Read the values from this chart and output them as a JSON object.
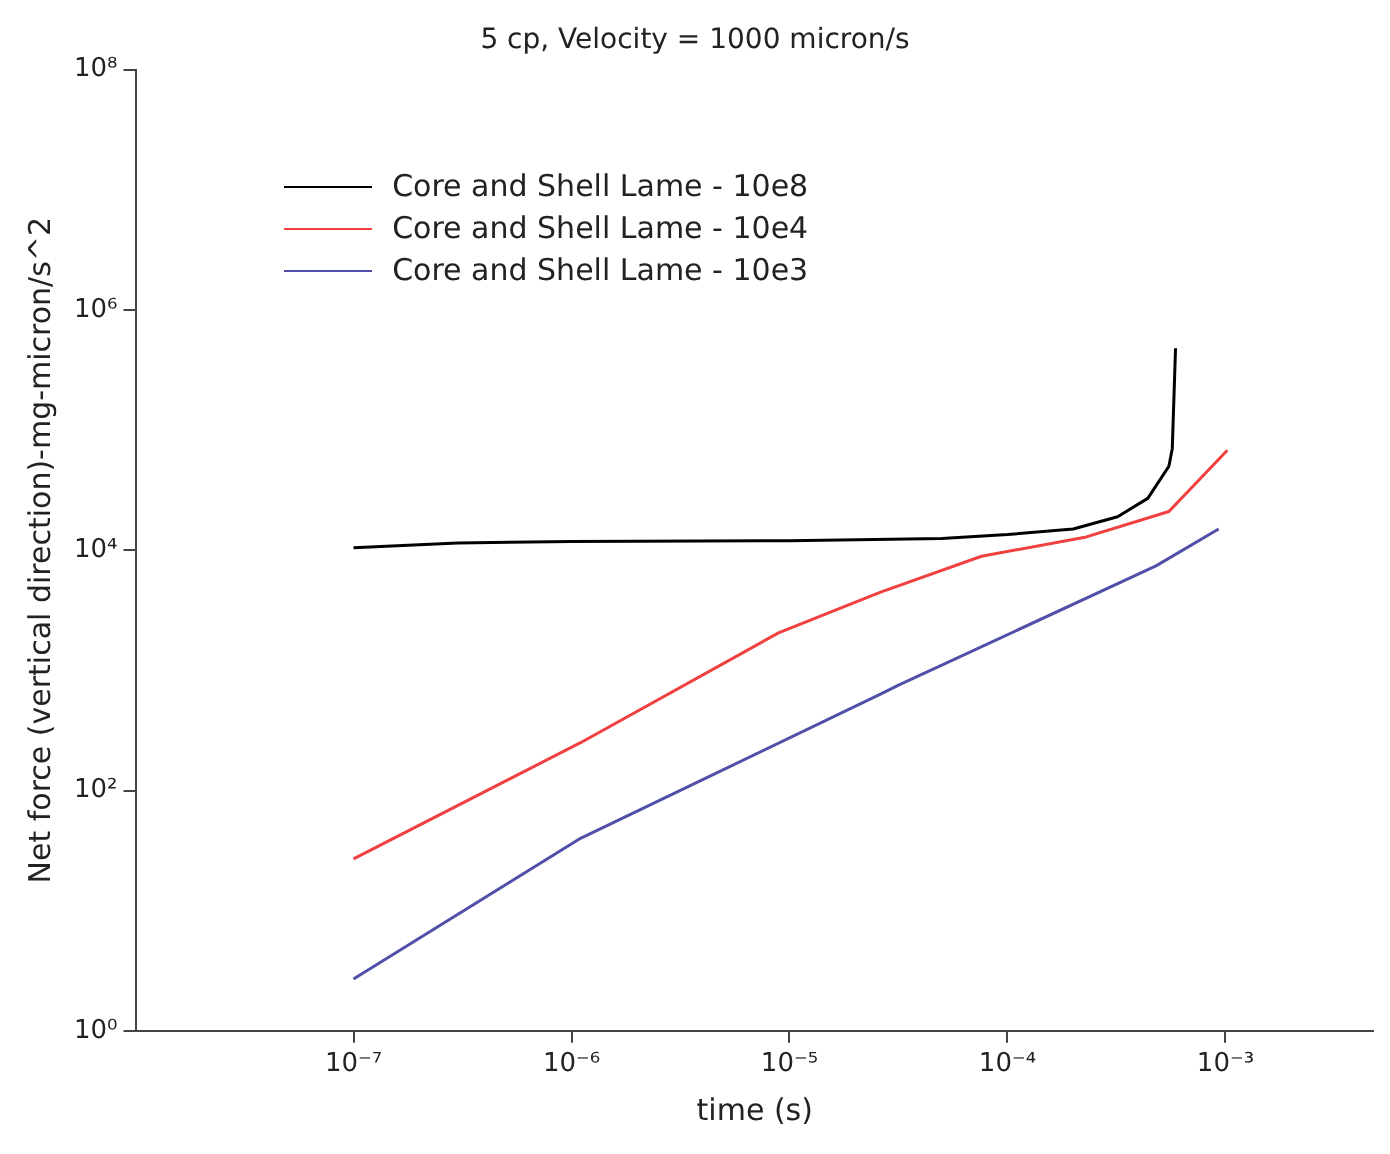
{
  "chart_data": {
    "type": "line",
    "title": "5 cp, Velocity = 1000 micron/s",
    "xlabel": "time (s)",
    "ylabel": "Net force (vertical direction)-mg-micron/s^2",
    "log": "xy",
    "grid": false,
    "legend": "top left",
    "marker": "none",
    "line_style": "solid",
    "xlim": [
      1e-08,
      0.0048
    ],
    "ylim": [
      1,
      100000000.0
    ],
    "xticks": [
      {
        "value": 1e-07,
        "label": "10⁻⁷"
      },
      {
        "value": 1e-06,
        "label": "10⁻⁶"
      },
      {
        "value": 1e-05,
        "label": "10⁻⁵"
      },
      {
        "value": 0.0001,
        "label": "10⁻⁴"
      },
      {
        "value": 0.001,
        "label": "10⁻³"
      }
    ],
    "yticks": [
      {
        "value": 1,
        "label": "10⁰"
      },
      {
        "value": 100,
        "label": "10²"
      },
      {
        "value": 10000,
        "label": "10⁴"
      },
      {
        "value": 1000000,
        "label": "10⁶"
      },
      {
        "value": 100000000,
        "label": "10⁸"
      }
    ],
    "series": [
      {
        "name": "Core and Shell Lame - 10e8",
        "color": "#000000",
        "x": [
          1e-07,
          3e-07,
          1e-06,
          1e-05,
          5e-05,
          0.0001,
          0.0002,
          0.00032,
          0.00044,
          0.00055,
          0.00057,
          0.00059
        ],
        "values": [
          10500,
          11500,
          11800,
          12000,
          12500,
          13500,
          15000,
          19000,
          27000,
          50000,
          70000,
          480000
        ]
      },
      {
        "name": "Core and Shell Lame - 10e4",
        "color": "#f04040",
        "x": [
          1e-07,
          1.1e-06,
          8.9e-06,
          2.6e-05,
          7.6e-05,
          0.00023,
          0.00055,
          0.00102
        ],
        "values": [
          27,
          250,
          2050,
          4460,
          8900,
          12900,
          21000,
          68000
        ]
      },
      {
        "name": "Core and Shell Lame - 10e3",
        "color": "#5050a8",
        "x": [
          1e-07,
          1.1e-06,
          2.6e-05,
          3.2e-05,
          0.00048,
          0.00093
        ],
        "values": [
          2.7,
          40,
          630,
          760,
          7400,
          15000
        ]
      }
    ]
  }
}
